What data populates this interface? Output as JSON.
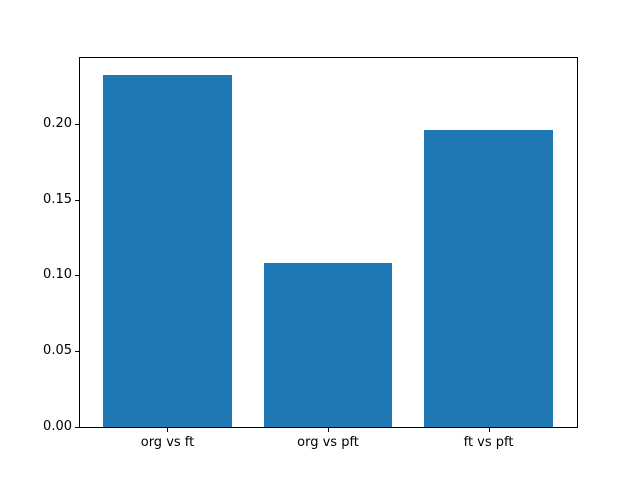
{
  "chart_data": {
    "type": "bar",
    "title": "",
    "xlabel": "",
    "ylabel": "",
    "categories": [
      "org vs ft",
      "org vs pft",
      "ft vs pft"
    ],
    "values": [
      0.232,
      0.108,
      0.196
    ],
    "bar_color": "#1f77b4",
    "bar_width_units": 0.8,
    "xlim": [
      -0.545,
      2.551
    ],
    "ylim": [
      0,
      0.2434
    ],
    "yticks": [
      {
        "value": 0.0,
        "label": "0.00"
      },
      {
        "value": 0.05,
        "label": "0.05"
      },
      {
        "value": 0.1,
        "label": "0.10"
      },
      {
        "value": 0.15,
        "label": "0.15"
      },
      {
        "value": 0.2,
        "label": "0.20"
      }
    ],
    "grid": false,
    "legend": null,
    "spine_color": "#000000",
    "background_color": "#ffffff"
  }
}
